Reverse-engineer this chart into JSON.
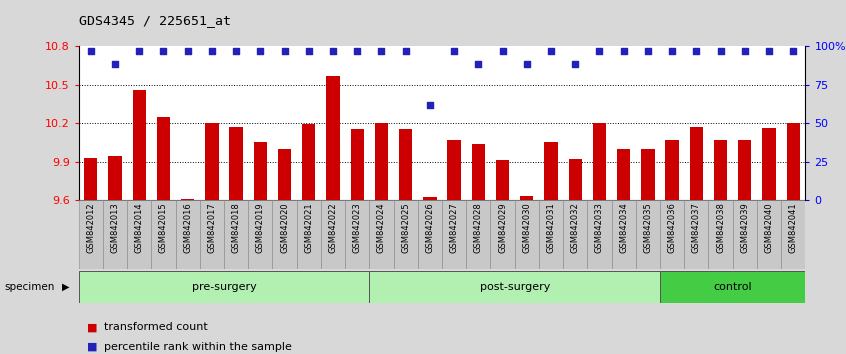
{
  "title": "GDS4345 / 225651_at",
  "samples": [
    "GSM842012",
    "GSM842013",
    "GSM842014",
    "GSM842015",
    "GSM842016",
    "GSM842017",
    "GSM842018",
    "GSM842019",
    "GSM842020",
    "GSM842021",
    "GSM842022",
    "GSM842023",
    "GSM842024",
    "GSM842025",
    "GSM842026",
    "GSM842027",
    "GSM842028",
    "GSM842029",
    "GSM842030",
    "GSM842031",
    "GSM842032",
    "GSM842033",
    "GSM842034",
    "GSM842035",
    "GSM842036",
    "GSM842037",
    "GSM842038",
    "GSM842039",
    "GSM842040",
    "GSM842041"
  ],
  "bar_values": [
    9.93,
    9.94,
    10.46,
    10.25,
    9.61,
    10.2,
    10.17,
    10.05,
    10.0,
    10.19,
    10.57,
    10.15,
    10.2,
    10.15,
    9.62,
    10.07,
    10.04,
    9.91,
    9.63,
    10.05,
    9.92,
    10.2,
    10.0,
    10.0,
    10.07,
    10.17,
    10.07,
    10.07,
    10.16,
    10.2
  ],
  "percentile_values": [
    97,
    88,
    97,
    97,
    97,
    97,
    97,
    97,
    97,
    97,
    97,
    97,
    97,
    97,
    62,
    97,
    88,
    97,
    88,
    97,
    88,
    97,
    97,
    97,
    97,
    97,
    97,
    97,
    97,
    97
  ],
  "groups": [
    {
      "label": "pre-surgery",
      "start": 0,
      "end": 12,
      "color": "#b2f0b2"
    },
    {
      "label": "post-surgery",
      "start": 12,
      "end": 24,
      "color": "#b2f0b2"
    },
    {
      "label": "control",
      "start": 24,
      "end": 30,
      "color": "#44cc44"
    }
  ],
  "bar_color": "#cc0000",
  "dot_color": "#2222bb",
  "ylim_left": [
    9.6,
    10.8
  ],
  "ylim_right": [
    0,
    100
  ],
  "yticks_left": [
    9.6,
    9.9,
    10.2,
    10.5,
    10.8
  ],
  "ytick_labels_left": [
    "9.6",
    "9.9",
    "10.2",
    "10.5",
    "10.8"
  ],
  "yticks_right": [
    0,
    25,
    50,
    75,
    100
  ],
  "ytick_labels_right": [
    "0",
    "25",
    "50",
    "75",
    "100%"
  ],
  "grid_values": [
    9.9,
    10.2,
    10.5
  ],
  "background_color": "#d8d8d8",
  "plot_bg": "#ffffff",
  "tick_bg_color": "#cccccc",
  "legend_red_label": "transformed count",
  "legend_blue_label": "percentile rank within the sample",
  "specimen_label": "specimen"
}
